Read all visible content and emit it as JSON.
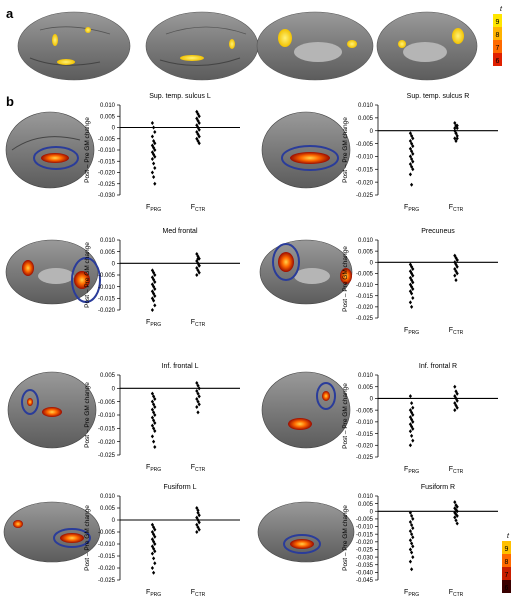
{
  "panel_a_label": "a",
  "panel_b_label": "b",
  "colorbar_top": {
    "label": "t",
    "ticks": [
      "9",
      "8",
      "7",
      "6"
    ],
    "colors": [
      "#ffe600",
      "#ffb300",
      "#ff6a00",
      "#e02000"
    ]
  },
  "colorbar_bottom": {
    "label": "t",
    "ticks": [
      "9",
      "8",
      "7",
      "6"
    ],
    "colors": [
      "#ffc000",
      "#ff6a00",
      "#c81e00",
      "#3a0000"
    ]
  },
  "chart_data": [
    {
      "type": "scatter",
      "title": "Sup. temp. sulcus L",
      "ylabel": "Post – Pre GM change",
      "categories": [
        "F_PRG",
        "F_CTR"
      ],
      "ylim": [
        -0.03,
        0.01
      ],
      "yticks": [
        "0.010",
        "0.005",
        "0",
        "-0.005",
        "-0.010",
        "-0.015",
        "-0.020",
        "-0.025",
        "-0.030"
      ],
      "series": [
        {
          "values": [
            0.002,
            0.0,
            -0.002,
            -0.004,
            -0.006,
            -0.007,
            -0.008,
            -0.009,
            -0.01,
            -0.011,
            -0.012,
            -0.013,
            -0.014,
            -0.016,
            -0.018,
            -0.02,
            -0.022,
            -0.025
          ]
        },
        {
          "values": [
            0.007,
            0.006,
            0.005,
            0.004,
            0.003,
            0.002,
            0.001,
            0.0,
            -0.001,
            -0.002,
            -0.003,
            -0.004,
            -0.005,
            -0.006,
            -0.007
          ]
        }
      ]
    },
    {
      "type": "scatter",
      "title": "Sup. temp. sulcus R",
      "ylabel": "Post – Pre GM change",
      "categories": [
        "F_PRG",
        "F_CTR"
      ],
      "ylim": [
        -0.025,
        0.01
      ],
      "yticks": [
        "0.010",
        "0.005",
        "0",
        "-0.005",
        "-0.010",
        "-0.015",
        "-0.020",
        "-0.025"
      ],
      "series": [
        {
          "values": [
            -0.001,
            -0.002,
            -0.003,
            -0.004,
            -0.005,
            -0.006,
            -0.007,
            -0.008,
            -0.009,
            -0.01,
            -0.011,
            -0.012,
            -0.013,
            -0.014,
            -0.015,
            -0.017,
            -0.021
          ]
        },
        {
          "values": [
            0.003,
            0.002,
            0.001,
            0.0,
            -0.001,
            -0.002,
            -0.003,
            -0.004,
            0.002,
            0.001,
            -0.001,
            -0.003
          ]
        }
      ]
    },
    {
      "type": "scatter",
      "title": "Med frontal",
      "ylabel": "Post – Pre GM change",
      "categories": [
        "F_PRG",
        "F_CTR"
      ],
      "ylim": [
        -0.02,
        0.01
      ],
      "yticks": [
        "0.010",
        "0.005",
        "0",
        "-0.005",
        "-0.010",
        "-0.015",
        "-0.020"
      ],
      "series": [
        {
          "values": [
            -0.003,
            -0.004,
            -0.005,
            -0.006,
            -0.007,
            -0.008,
            -0.009,
            -0.01,
            -0.011,
            -0.012,
            -0.013,
            -0.014,
            -0.015,
            -0.016,
            -0.018,
            -0.02
          ]
        },
        {
          "values": [
            0.004,
            0.003,
            0.002,
            0.001,
            0.0,
            -0.001,
            -0.002,
            -0.003,
            -0.004,
            -0.005,
            0.002,
            -0.001
          ]
        }
      ]
    },
    {
      "type": "scatter",
      "title": "Precuneus",
      "ylabel": "Post – Pre GM change",
      "categories": [
        "F_PRG",
        "F_CTR"
      ],
      "ylim": [
        -0.025,
        0.01
      ],
      "yticks": [
        "0.010",
        "0.005",
        "0",
        "-0.005",
        "-0.010",
        "-0.015",
        "-0.020",
        "-0.025"
      ],
      "series": [
        {
          "values": [
            -0.001,
            -0.002,
            -0.003,
            -0.004,
            -0.005,
            -0.006,
            -0.007,
            -0.008,
            -0.009,
            -0.01,
            -0.011,
            -0.012,
            -0.013,
            -0.014,
            -0.016,
            -0.018,
            -0.02
          ]
        },
        {
          "values": [
            0.003,
            0.002,
            0.001,
            0.0,
            -0.001,
            -0.002,
            -0.003,
            -0.004,
            -0.005,
            -0.006,
            -0.008,
            0.001
          ]
        }
      ]
    },
    {
      "type": "scatter",
      "title": "Inf. frontal L",
      "ylabel": "Post – Pre GM change",
      "categories": [
        "F_PRG",
        "F_CTR"
      ],
      "ylim": [
        -0.025,
        0.005
      ],
      "yticks": [
        "0.005",
        "0",
        "-0.005",
        "-0.010",
        "-0.015",
        "-0.020",
        "-0.025"
      ],
      "series": [
        {
          "values": [
            -0.002,
            -0.003,
            -0.004,
            -0.005,
            -0.006,
            -0.007,
            -0.008,
            -0.009,
            -0.01,
            -0.011,
            -0.012,
            -0.013,
            -0.014,
            -0.015,
            -0.016,
            -0.018,
            -0.02,
            -0.022
          ]
        },
        {
          "values": [
            0.002,
            0.001,
            0.0,
            -0.001,
            -0.002,
            -0.003,
            -0.004,
            -0.005,
            -0.006,
            -0.007,
            -0.009
          ]
        }
      ]
    },
    {
      "type": "scatter",
      "title": "Inf. frontal R",
      "ylabel": "Post – Pre GM change",
      "categories": [
        "F_PRG",
        "F_CTR"
      ],
      "ylim": [
        -0.025,
        0.01
      ],
      "yticks": [
        "0.010",
        "0.005",
        "0",
        "-0.005",
        "-0.010",
        "-0.015",
        "-0.020",
        "-0.025"
      ],
      "series": [
        {
          "values": [
            0.001,
            -0.002,
            -0.004,
            -0.005,
            -0.006,
            -0.007,
            -0.008,
            -0.009,
            -0.01,
            -0.011,
            -0.012,
            -0.013,
            -0.014,
            -0.016,
            -0.018,
            -0.02
          ]
        },
        {
          "values": [
            0.005,
            0.003,
            0.002,
            0.001,
            0.0,
            -0.001,
            -0.002,
            -0.003,
            -0.004,
            -0.005
          ]
        }
      ]
    },
    {
      "type": "scatter",
      "title": "Fusiform L",
      "ylabel": "Post – Pre GM change",
      "categories": [
        "F_PRG",
        "F_CTR"
      ],
      "ylim": [
        -0.025,
        0.01
      ],
      "yticks": [
        "0.010",
        "0.005",
        "0",
        "-0.005",
        "-0.010",
        "-0.015",
        "-0.020",
        "-0.025"
      ],
      "series": [
        {
          "values": [
            -0.002,
            -0.003,
            -0.004,
            -0.005,
            -0.006,
            -0.007,
            -0.008,
            -0.009,
            -0.01,
            -0.011,
            -0.012,
            -0.013,
            -0.014,
            -0.016,
            -0.018,
            -0.02,
            -0.022
          ]
        },
        {
          "values": [
            0.005,
            0.003,
            0.002,
            0.001,
            0.0,
            -0.001,
            -0.002,
            -0.003,
            -0.004,
            -0.005,
            0.004
          ]
        }
      ]
    },
    {
      "type": "scatter",
      "title": "Fusiform R",
      "ylabel": "Post – Pre GM change",
      "categories": [
        "F_PRG",
        "F_CTR"
      ],
      "ylim": [
        -0.045,
        0.01
      ],
      "yticks": [
        "0.010",
        "0.005",
        "0",
        "-0.005",
        "-0.010",
        "-0.015",
        "-0.020",
        "-0.025",
        "-0.030",
        "-0.035",
        "-0.040",
        "-0.045"
      ],
      "series": [
        {
          "values": [
            -0.001,
            -0.003,
            -0.005,
            -0.007,
            -0.009,
            -0.011,
            -0.013,
            -0.015,
            -0.017,
            -0.019,
            -0.021,
            -0.023,
            -0.025,
            -0.027,
            -0.03,
            -0.033,
            -0.038
          ]
        },
        {
          "values": [
            0.006,
            0.004,
            0.003,
            0.002,
            0.001,
            0.0,
            -0.001,
            -0.002,
            -0.003,
            -0.004,
            -0.006,
            -0.008
          ]
        }
      ]
    }
  ]
}
